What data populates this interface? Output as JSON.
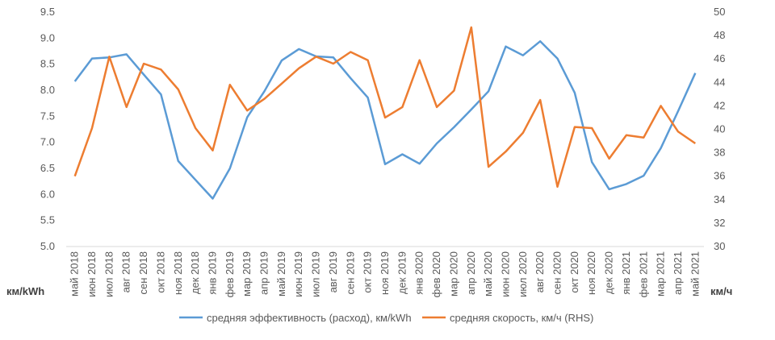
{
  "chart_data": {
    "type": "line",
    "categories": [
      "май 2018",
      "июн 2018",
      "июл 2018",
      "авг 2018",
      "сен 2018",
      "окт 2018",
      "ноя 2018",
      "дек 2018",
      "янв 2019",
      "фев 2019",
      "мар 2019",
      "апр 2019",
      "май 2019",
      "июн 2019",
      "июл 2019",
      "авг 2019",
      "сен 2019",
      "окт 2019",
      "ноя 2019",
      "дек 2019",
      "янв 2020",
      "фев 2020",
      "мар 2020",
      "апр 2020",
      "май 2020",
      "июн 2020",
      "июл 2020",
      "авг 2020",
      "сен 2020",
      "окт 2020",
      "ноя 2020",
      "дек 2020",
      "янв 2021",
      "фев 2021",
      "мар 2021",
      "апр 2021",
      "май 2021"
    ],
    "series": [
      {
        "name": "средняя эффективность (расход), км/kWh",
        "axis": "left",
        "color": "#5b9bd5",
        "values": [
          8.17,
          8.61,
          8.63,
          8.69,
          8.3,
          7.92,
          6.64,
          6.28,
          5.92,
          6.5,
          7.48,
          7.98,
          8.57,
          8.79,
          8.65,
          8.63,
          8.23,
          7.86,
          6.58,
          6.77,
          6.59,
          6.98,
          7.29,
          7.63,
          7.98,
          8.84,
          8.67,
          8.94,
          8.61,
          7.95,
          6.62,
          6.1,
          6.2,
          6.36,
          6.89,
          7.6,
          8.33
        ]
      },
      {
        "name": "средняя скорость, км/ч (RHS)",
        "axis": "right",
        "color": "#ed7d31",
        "values": [
          36.0,
          40.1,
          46.2,
          41.9,
          45.6,
          45.1,
          43.4,
          40.1,
          38.2,
          43.8,
          41.6,
          42.6,
          43.9,
          45.2,
          46.2,
          45.6,
          46.6,
          45.9,
          41.0,
          41.9,
          45.9,
          41.9,
          43.3,
          48.7,
          36.8,
          38.1,
          39.7,
          42.5,
          35.1,
          40.2,
          40.1,
          37.5,
          39.5,
          39.3,
          42.0,
          39.8,
          38.8
        ]
      }
    ],
    "y_left": {
      "min": 5.0,
      "max": 9.5,
      "ticks": [
        "5.0",
        "5.5",
        "6.0",
        "6.5",
        "7.0",
        "7.5",
        "8.0",
        "8.5",
        "9.0",
        "9.5"
      ],
      "unit_label": "км/kWh"
    },
    "y_right": {
      "min": 30,
      "max": 50,
      "ticks": [
        "30",
        "32",
        "34",
        "36",
        "38",
        "40",
        "42",
        "44",
        "46",
        "48",
        "50"
      ],
      "unit_label": "км/ч"
    },
    "grid": false,
    "legend_position": "bottom"
  }
}
